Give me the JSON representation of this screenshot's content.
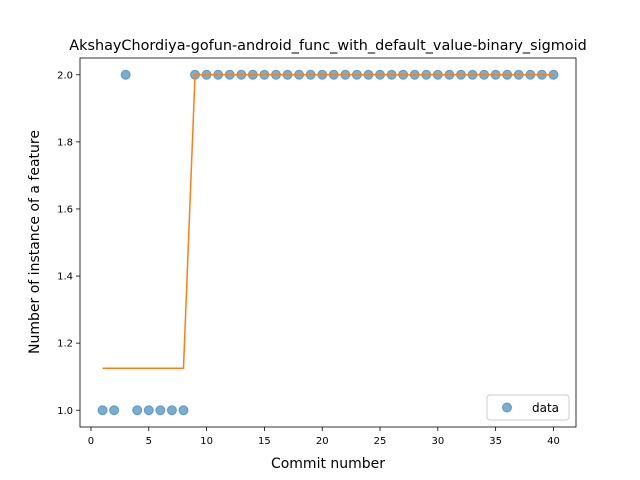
{
  "chart_data": {
    "type": "scatter",
    "title": "AkshayChordiya-gofun-android_func_with_default_value-binary_sigmoid",
    "xlabel": "Commit number",
    "ylabel": "Number of instance of a feature",
    "xlim": [
      -0.95,
      41.95
    ],
    "ylim": [
      0.95,
      2.05
    ],
    "xticks": [
      0,
      5,
      10,
      15,
      20,
      25,
      30,
      35,
      40
    ],
    "yticks": [
      1.0,
      1.2,
      1.4,
      1.6,
      1.8,
      2.0
    ],
    "xtick_labels": [
      "0",
      "5",
      "10",
      "15",
      "20",
      "25",
      "30",
      "35",
      "40"
    ],
    "ytick_labels": [
      "1.0",
      "1.2",
      "1.4",
      "1.6",
      "1.8",
      "2.0"
    ],
    "grid": false,
    "legend_position": "lower right",
    "series": [
      {
        "name": "data",
        "kind": "scatter",
        "color": "#1f77b4",
        "x": [
          1,
          2,
          3,
          4,
          5,
          6,
          7,
          8,
          9,
          10,
          11,
          12,
          13,
          14,
          15,
          16,
          17,
          18,
          19,
          20,
          21,
          22,
          23,
          24,
          25,
          26,
          27,
          28,
          29,
          30,
          31,
          32,
          33,
          34,
          35,
          36,
          37,
          38,
          39,
          40
        ],
        "y": [
          1,
          1,
          2,
          1,
          1,
          1,
          1,
          1,
          2,
          2,
          2,
          2,
          2,
          2,
          2,
          2,
          2,
          2,
          2,
          2,
          2,
          2,
          2,
          2,
          2,
          2,
          2,
          2,
          2,
          2,
          2,
          2,
          2,
          2,
          2,
          2,
          2,
          2,
          2,
          2
        ]
      },
      {
        "kind": "line",
        "color": "#ff7f0e",
        "x": [
          1,
          8,
          9,
          40
        ],
        "y": [
          1.125,
          1.125,
          2.0,
          2.0
        ]
      }
    ]
  }
}
